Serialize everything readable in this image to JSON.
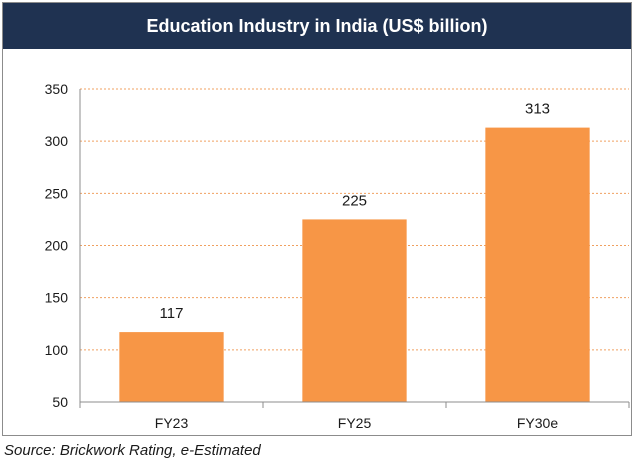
{
  "chart_data": {
    "type": "bar",
    "title": "Education Industry in India (US$ billion)",
    "categories": [
      "FY23",
      "FY25",
      "FY30e"
    ],
    "values": [
      117,
      225,
      313
    ],
    "data_labels": [
      "117",
      "225",
      "313"
    ],
    "ylim": [
      50,
      350
    ],
    "yticks": [
      50,
      100,
      150,
      200,
      250,
      300,
      350
    ],
    "xlabel": "",
    "ylabel": "",
    "grid": true,
    "grid_style": "dotted",
    "bar_color": "#f79646",
    "grid_color": "#f0a060",
    "title_bar_color": "#1f3251"
  },
  "source": "Source: Brickwork Rating, e-Estimated"
}
